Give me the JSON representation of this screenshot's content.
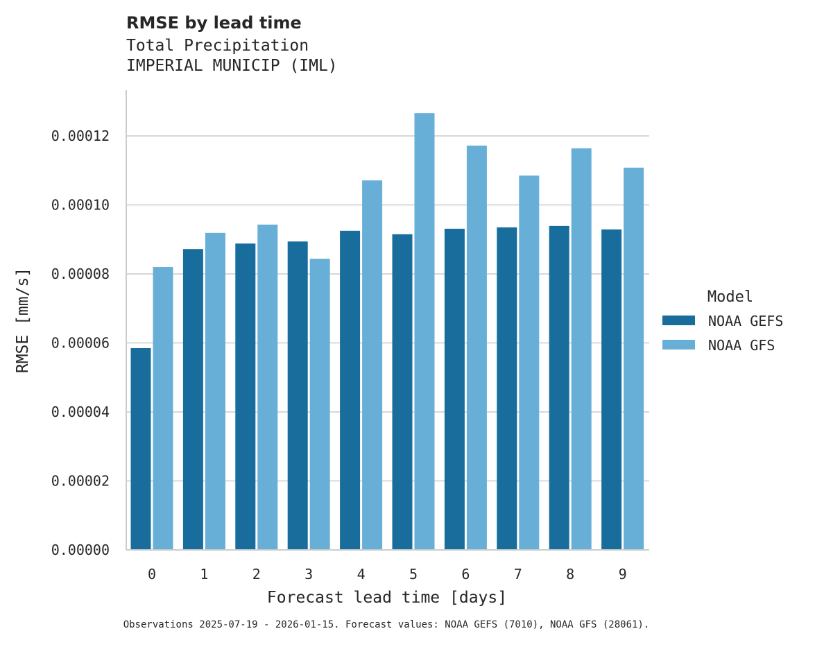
{
  "chart_data": {
    "type": "bar",
    "title": "RMSE by lead time",
    "subtitle_lines": [
      "Total Precipitation",
      "IMPERIAL MUNICIP (IML)"
    ],
    "xlabel": "Forecast lead time [days]",
    "ylabel": "RMSE [mm/s]",
    "categories": [
      "0",
      "1",
      "2",
      "3",
      "4",
      "5",
      "6",
      "7",
      "8",
      "9"
    ],
    "ylim": [
      0,
      0.000133
    ],
    "yticks": [
      "0.00000",
      "0.00002",
      "0.00004",
      "0.00006",
      "0.00008",
      "0.00010",
      "0.00012"
    ],
    "ytick_values": [
      0,
      2e-05,
      4e-05,
      6e-05,
      8e-05,
      0.0001,
      0.00012
    ],
    "grid": "horizontal",
    "legend": {
      "title": "Model",
      "placement": "right"
    },
    "series": [
      {
        "name": "NOAA GEFS",
        "color": "#186d9d",
        "values": [
          5.85e-05,
          8.72e-05,
          8.88e-05,
          8.94e-05,
          9.25e-05,
          9.15e-05,
          9.31e-05,
          9.35e-05,
          9.39e-05,
          9.29e-05
        ]
      },
      {
        "name": "NOAA GFS",
        "color": "#67afd7",
        "values": [
          8.2e-05,
          9.19e-05,
          9.43e-05,
          8.44e-05,
          0.0001071,
          0.0001266,
          0.0001172,
          0.0001085,
          0.0001164,
          0.0001108
        ]
      }
    ],
    "footnote": "Observations 2025-07-19 - 2026-01-15. Forecast values: NOAA GEFS (7010), NOAA GFS (28061)."
  }
}
